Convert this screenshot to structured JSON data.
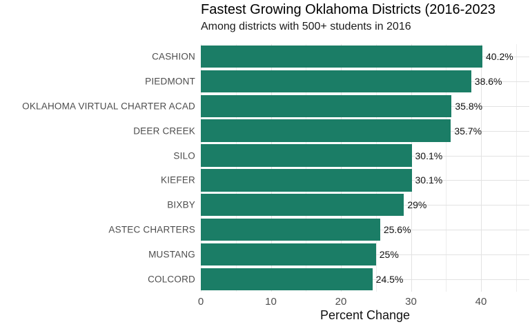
{
  "chart_data": {
    "type": "bar",
    "orientation": "horizontal",
    "title": "Fastest Growing Oklahoma Districts (2016-2023",
    "subtitle": "Among districts with 500+ students in 2016",
    "xlabel": "Percent Change",
    "categories": [
      "CASHION",
      "PIEDMONT",
      "OKLAHOMA VIRTUAL CHARTER ACAD",
      "DEER CREEK",
      "SILO",
      "KIEFER",
      "BIXBY",
      "ASTEC CHARTERS",
      "MUSTANG",
      "COLCORD"
    ],
    "values": [
      40.2,
      38.6,
      35.8,
      35.7,
      30.1,
      30.1,
      29,
      25.6,
      25,
      24.5
    ],
    "value_labels": [
      "40.2%",
      "38.6%",
      "35.8%",
      "35.7%",
      "30.1%",
      "30.1%",
      "29%",
      "25.6%",
      "25%",
      "24.5%"
    ],
    "x_ticks": [
      0,
      10,
      20,
      30,
      40
    ],
    "x_minor_gridlines": [
      5,
      15,
      25,
      35,
      45
    ],
    "xlim": [
      0,
      46.9
    ],
    "bar_color": "#1b7d66",
    "grid": true,
    "legend": "none"
  }
}
